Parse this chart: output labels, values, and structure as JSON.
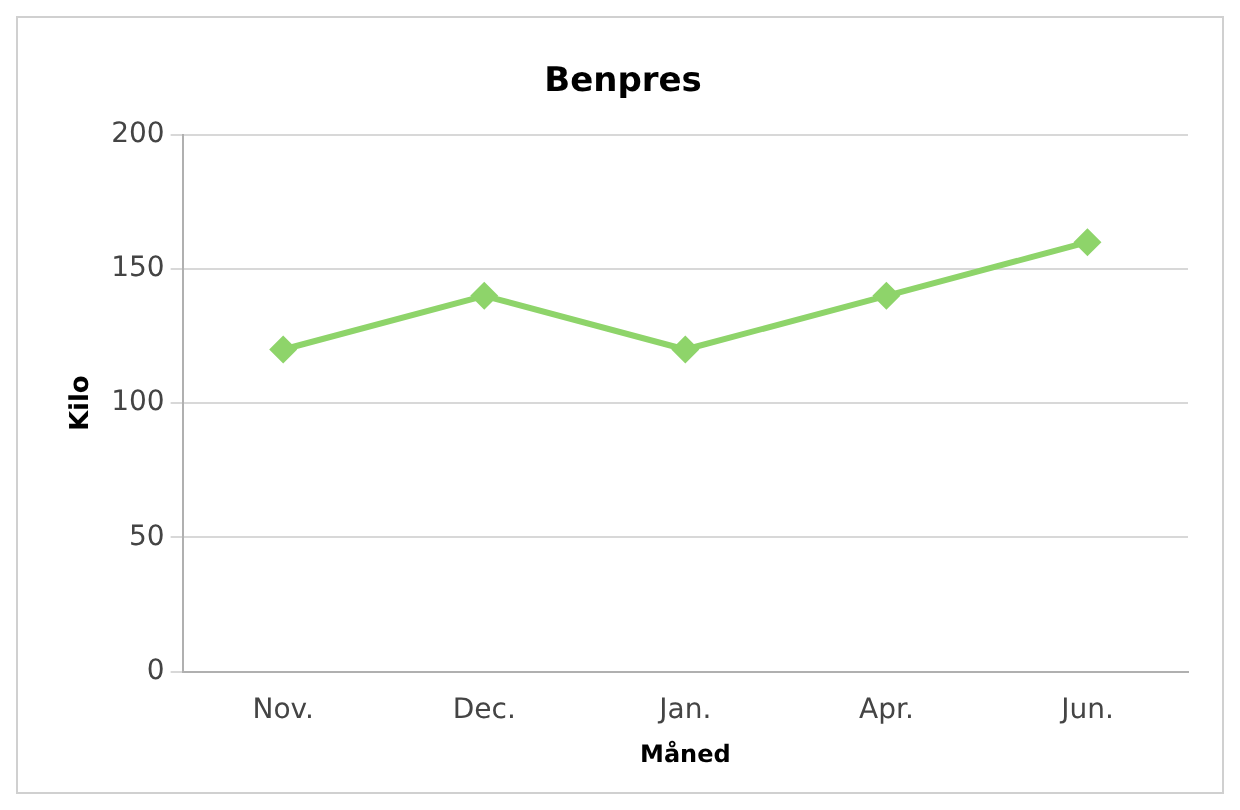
{
  "chart_data": {
    "type": "line",
    "title": "Benpres",
    "xlabel": "Måned",
    "ylabel": "Kilo",
    "categories": [
      "Nov.",
      "Dec.",
      "Jan.",
      "Apr.",
      "Jun."
    ],
    "series": [
      {
        "color": "#8ed46a",
        "values": [
          120,
          140,
          120,
          140,
          160
        ]
      }
    ],
    "ylim": [
      0,
      200
    ],
    "yticks": [
      0,
      50,
      100,
      150,
      200
    ],
    "grid": "y",
    "legend": false,
    "marker": "diamond",
    "line_style": "solid"
  }
}
